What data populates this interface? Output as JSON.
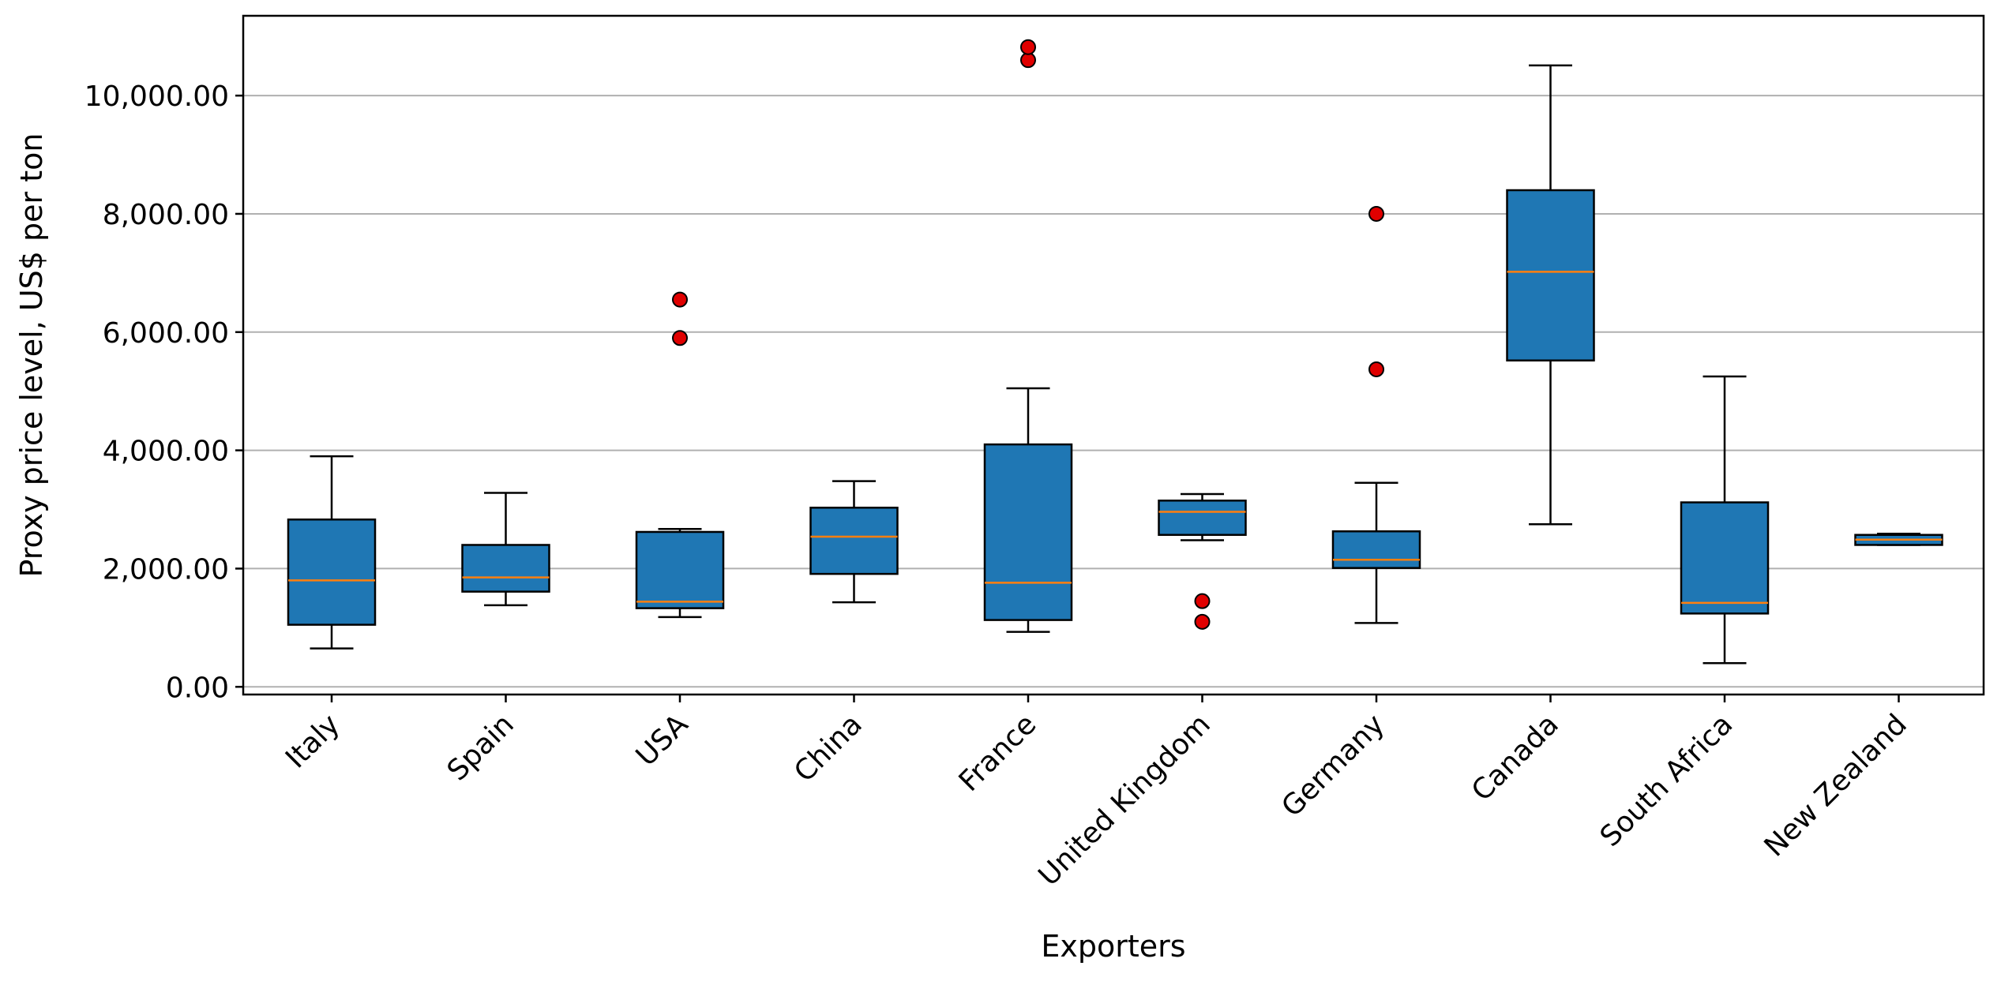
{
  "chart_data": {
    "type": "box",
    "xlabel": "Exporters",
    "ylabel": "Proxy price level, US$ per ton",
    "ylim": [
      -130,
      11350
    ],
    "yticks": [
      0,
      2000,
      4000,
      6000,
      8000,
      10000
    ],
    "ytick_labels": [
      "0.00",
      "2,000.00",
      "4,000.00",
      "6,000.00",
      "8,000.00",
      "10,000.00"
    ],
    "grid": "horizontal",
    "colors": {
      "box_fill": "#1f77b4",
      "median": "#ff7f0e",
      "outlier": "#e00000",
      "grid": "#b0b0b0"
    },
    "categories": [
      "Italy",
      "Spain",
      "USA",
      "China",
      "France",
      "United Kingdom",
      "Germany",
      "Canada",
      "South Africa",
      "New Zealand"
    ],
    "series": [
      {
        "category": "Italy",
        "whisker_low": 650,
        "q1": 1050,
        "median": 1800,
        "q3": 2830,
        "whisker_high": 3900,
        "outliers": []
      },
      {
        "category": "Spain",
        "whisker_low": 1380,
        "q1": 1610,
        "median": 1850,
        "q3": 2400,
        "whisker_high": 3280,
        "outliers": []
      },
      {
        "category": "USA",
        "whisker_low": 1180,
        "q1": 1330,
        "median": 1440,
        "q3": 2620,
        "whisker_high": 2670,
        "outliers": [
          5900,
          6550
        ]
      },
      {
        "category": "China",
        "whisker_low": 1430,
        "q1": 1910,
        "median": 2540,
        "q3": 3030,
        "whisker_high": 3480,
        "outliers": []
      },
      {
        "category": "France",
        "whisker_low": 930,
        "q1": 1130,
        "median": 1760,
        "q3": 4100,
        "whisker_high": 5050,
        "outliers": [
          10600,
          10820
        ]
      },
      {
        "category": "United Kingdom",
        "whisker_low": 2480,
        "q1": 2570,
        "median": 2960,
        "q3": 3150,
        "whisker_high": 3260,
        "outliers": [
          1100,
          1450
        ]
      },
      {
        "category": "Germany",
        "whisker_low": 1080,
        "q1": 2010,
        "median": 2150,
        "q3": 2630,
        "whisker_high": 3450,
        "outliers": [
          5370,
          8000
        ]
      },
      {
        "category": "Canada",
        "whisker_low": 2750,
        "q1": 5520,
        "median": 7020,
        "q3": 8400,
        "whisker_high": 10510,
        "outliers": []
      },
      {
        "category": "South Africa",
        "whisker_low": 400,
        "q1": 1240,
        "median": 1420,
        "q3": 3120,
        "whisker_high": 5250,
        "outliers": []
      },
      {
        "category": "New Zealand",
        "whisker_low": 2400,
        "q1": 2400,
        "median": 2490,
        "q3": 2570,
        "whisker_high": 2590,
        "outliers": []
      }
    ]
  }
}
